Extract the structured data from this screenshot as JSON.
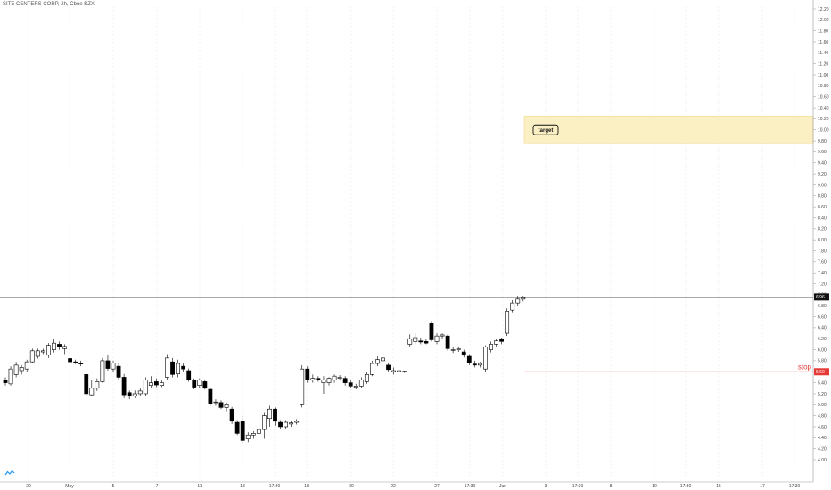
{
  "header": {
    "title": "SITE CENTERS CORP, 2h, Cboe BZX"
  },
  "chart_data": {
    "type": "candlestick",
    "title": "SITE CENTERS CORP, 2h, Cboe BZX",
    "ylim": [
      4.0,
      12.3
    ],
    "y_ticks": [
      "12.20",
      "12.00",
      "11.80",
      "11.60",
      "11.40",
      "11.20",
      "11.00",
      "10.80",
      "10.60",
      "10.40",
      "10.20",
      "10.00",
      "9.80",
      "9.60",
      "9.40",
      "9.20",
      "9.00",
      "8.80",
      "8.60",
      "8.40",
      "8.20",
      "8.00",
      "7.80",
      "7.60",
      "7.40",
      "7.20",
      "7.00",
      "6.80",
      "6.60",
      "6.40",
      "6.20",
      "6.00",
      "5.80",
      "5.60",
      "5.40",
      "5.20",
      "5.00",
      "4.80",
      "4.60",
      "4.40",
      "4.20",
      "4.00"
    ],
    "x_ticks": [
      "29",
      "May",
      "5",
      "7",
      "11",
      "13",
      "17:30",
      "18",
      "20",
      "22",
      "27",
      "17:30",
      "Jun",
      "3",
      "17:30",
      "8",
      "10",
      "17:30",
      "15",
      "17",
      "17:30"
    ],
    "candles": [
      {
        "o": 5.45,
        "h": 5.5,
        "l": 5.35,
        "c": 5.4
      },
      {
        "o": 5.38,
        "h": 5.7,
        "l": 5.35,
        "c": 5.65
      },
      {
        "o": 5.55,
        "h": 5.78,
        "l": 5.5,
        "c": 5.72
      },
      {
        "o": 5.62,
        "h": 5.72,
        "l": 5.55,
        "c": 5.68
      },
      {
        "o": 5.65,
        "h": 5.82,
        "l": 5.6,
        "c": 5.78
      },
      {
        "o": 5.78,
        "h": 6.02,
        "l": 5.75,
        "c": 5.98
      },
      {
        "o": 5.88,
        "h": 6.02,
        "l": 5.84,
        "c": 5.98
      },
      {
        "o": 5.96,
        "h": 6.02,
        "l": 5.92,
        "c": 5.98
      },
      {
        "o": 5.9,
        "h": 6.12,
        "l": 5.85,
        "c": 6.08
      },
      {
        "o": 6.0,
        "h": 6.2,
        "l": 5.95,
        "c": 6.12
      },
      {
        "o": 6.1,
        "h": 6.15,
        "l": 6.0,
        "c": 6.05
      },
      {
        "o": 6.02,
        "h": 6.1,
        "l": 5.92,
        "c": 6.06
      },
      {
        "o": 5.84,
        "h": 5.86,
        "l": 5.72,
        "c": 5.78
      },
      {
        "o": 5.78,
        "h": 5.82,
        "l": 5.74,
        "c": 5.77
      },
      {
        "o": 5.76,
        "h": 5.8,
        "l": 5.7,
        "c": 5.74
      },
      {
        "o": 5.55,
        "h": 5.58,
        "l": 5.15,
        "c": 5.2
      },
      {
        "o": 5.18,
        "h": 5.45,
        "l": 5.15,
        "c": 5.3
      },
      {
        "o": 5.3,
        "h": 5.48,
        "l": 5.25,
        "c": 5.42
      },
      {
        "o": 5.42,
        "h": 5.85,
        "l": 5.4,
        "c": 5.8
      },
      {
        "o": 5.8,
        "h": 5.9,
        "l": 5.62,
        "c": 5.66
      },
      {
        "o": 5.65,
        "h": 5.8,
        "l": 5.6,
        "c": 5.76
      },
      {
        "o": 5.7,
        "h": 5.75,
        "l": 5.45,
        "c": 5.5
      },
      {
        "o": 5.5,
        "h": 5.56,
        "l": 5.12,
        "c": 5.18
      },
      {
        "o": 5.22,
        "h": 5.26,
        "l": 5.1,
        "c": 5.16
      },
      {
        "o": 5.16,
        "h": 5.26,
        "l": 5.12,
        "c": 5.2
      },
      {
        "o": 5.2,
        "h": 5.3,
        "l": 5.15,
        "c": 5.25
      },
      {
        "o": 5.2,
        "h": 5.5,
        "l": 5.15,
        "c": 5.45
      },
      {
        "o": 5.35,
        "h": 5.52,
        "l": 5.3,
        "c": 5.4
      },
      {
        "o": 5.42,
        "h": 5.48,
        "l": 5.32,
        "c": 5.36
      },
      {
        "o": 5.35,
        "h": 5.45,
        "l": 5.32,
        "c": 5.4
      },
      {
        "o": 5.5,
        "h": 5.92,
        "l": 5.45,
        "c": 5.85
      },
      {
        "o": 5.78,
        "h": 5.85,
        "l": 5.5,
        "c": 5.55
      },
      {
        "o": 5.56,
        "h": 5.82,
        "l": 5.5,
        "c": 5.75
      },
      {
        "o": 5.7,
        "h": 5.75,
        "l": 5.6,
        "c": 5.65
      },
      {
        "o": 5.62,
        "h": 5.66,
        "l": 5.42,
        "c": 5.45
      },
      {
        "o": 5.44,
        "h": 5.48,
        "l": 5.28,
        "c": 5.32
      },
      {
        "o": 5.35,
        "h": 5.48,
        "l": 5.3,
        "c": 5.45
      },
      {
        "o": 5.42,
        "h": 5.46,
        "l": 5.28,
        "c": 5.3
      },
      {
        "o": 5.28,
        "h": 5.3,
        "l": 4.98,
        "c": 5.02
      },
      {
        "o": 5.05,
        "h": 5.1,
        "l": 4.98,
        "c": 5.05
      },
      {
        "o": 5.04,
        "h": 5.08,
        "l": 4.92,
        "c": 4.95
      },
      {
        "o": 4.95,
        "h": 5.04,
        "l": 4.88,
        "c": 5.0
      },
      {
        "o": 4.92,
        "h": 4.96,
        "l": 4.65,
        "c": 4.7
      },
      {
        "o": 4.68,
        "h": 4.72,
        "l": 4.45,
        "c": 4.48
      },
      {
        "o": 4.7,
        "h": 4.8,
        "l": 4.3,
        "c": 4.35
      },
      {
        "o": 4.38,
        "h": 4.5,
        "l": 4.32,
        "c": 4.45
      },
      {
        "o": 4.45,
        "h": 4.52,
        "l": 4.38,
        "c": 4.48
      },
      {
        "o": 4.48,
        "h": 4.6,
        "l": 4.42,
        "c": 4.55
      },
      {
        "o": 4.55,
        "h": 4.85,
        "l": 4.38,
        "c": 4.8
      },
      {
        "o": 4.75,
        "h": 4.98,
        "l": 4.6,
        "c": 4.92
      },
      {
        "o": 4.92,
        "h": 4.95,
        "l": 4.62,
        "c": 4.7
      },
      {
        "o": 4.68,
        "h": 4.72,
        "l": 4.55,
        "c": 4.6
      },
      {
        "o": 4.6,
        "h": 4.72,
        "l": 4.55,
        "c": 4.68
      },
      {
        "o": 4.65,
        "h": 4.7,
        "l": 4.6,
        "c": 4.67
      },
      {
        "o": 4.68,
        "h": 4.74,
        "l": 4.64,
        "c": 4.7
      },
      {
        "o": 5.0,
        "h": 5.72,
        "l": 4.95,
        "c": 5.65
      },
      {
        "o": 5.65,
        "h": 5.7,
        "l": 5.4,
        "c": 5.45
      },
      {
        "o": 5.45,
        "h": 5.55,
        "l": 5.4,
        "c": 5.48
      },
      {
        "o": 5.48,
        "h": 5.52,
        "l": 5.42,
        "c": 5.45
      },
      {
        "o": 5.4,
        "h": 5.52,
        "l": 5.2,
        "c": 5.45
      },
      {
        "o": 5.4,
        "h": 5.5,
        "l": 5.35,
        "c": 5.48
      },
      {
        "o": 5.45,
        "h": 5.55,
        "l": 5.4,
        "c": 5.52
      },
      {
        "o": 5.48,
        "h": 5.54,
        "l": 5.44,
        "c": 5.5
      },
      {
        "o": 5.48,
        "h": 5.52,
        "l": 5.35,
        "c": 5.4
      },
      {
        "o": 5.4,
        "h": 5.46,
        "l": 5.3,
        "c": 5.34
      },
      {
        "o": 5.32,
        "h": 5.38,
        "l": 5.28,
        "c": 5.34
      },
      {
        "o": 5.34,
        "h": 5.5,
        "l": 5.3,
        "c": 5.45
      },
      {
        "o": 5.42,
        "h": 5.6,
        "l": 5.38,
        "c": 5.55
      },
      {
        "o": 5.55,
        "h": 5.8,
        "l": 5.52,
        "c": 5.75
      },
      {
        "o": 5.75,
        "h": 5.88,
        "l": 5.7,
        "c": 5.82
      },
      {
        "o": 5.8,
        "h": 5.9,
        "l": 5.75,
        "c": 5.85
      },
      {
        "o": 5.72,
        "h": 5.76,
        "l": 5.6,
        "c": 5.64
      },
      {
        "o": 5.6,
        "h": 5.68,
        "l": 5.55,
        "c": 5.62
      },
      {
        "o": 5.6,
        "h": 5.64,
        "l": 5.56,
        "c": 5.62
      },
      {
        "o": 5.6,
        "h": 5.62,
        "l": 5.58,
        "c": 5.61
      },
      {
        "o": 6.1,
        "h": 6.28,
        "l": 6.05,
        "c": 6.2
      },
      {
        "o": 6.15,
        "h": 6.3,
        "l": 6.1,
        "c": 6.22
      },
      {
        "o": 6.16,
        "h": 6.22,
        "l": 6.1,
        "c": 6.14
      },
      {
        "o": 6.15,
        "h": 6.2,
        "l": 6.1,
        "c": 6.12
      },
      {
        "o": 6.48,
        "h": 6.52,
        "l": 6.15,
        "c": 6.18
      },
      {
        "o": 6.15,
        "h": 6.3,
        "l": 6.1,
        "c": 6.25
      },
      {
        "o": 6.25,
        "h": 6.3,
        "l": 6.2,
        "c": 6.27
      },
      {
        "o": 6.25,
        "h": 6.28,
        "l": 5.98,
        "c": 6.02
      },
      {
        "o": 6.0,
        "h": 6.05,
        "l": 5.94,
        "c": 6.0
      },
      {
        "o": 6.0,
        "h": 6.06,
        "l": 5.96,
        "c": 6.02
      },
      {
        "o": 5.96,
        "h": 6.0,
        "l": 5.86,
        "c": 5.9
      },
      {
        "o": 5.88,
        "h": 5.92,
        "l": 5.72,
        "c": 5.76
      },
      {
        "o": 5.74,
        "h": 5.8,
        "l": 5.68,
        "c": 5.72
      },
      {
        "o": 5.72,
        "h": 5.78,
        "l": 5.68,
        "c": 5.75
      },
      {
        "o": 5.65,
        "h": 6.08,
        "l": 5.6,
        "c": 6.05
      },
      {
        "o": 6.0,
        "h": 6.15,
        "l": 5.95,
        "c": 6.1
      },
      {
        "o": 6.1,
        "h": 6.2,
        "l": 6.06,
        "c": 6.16
      },
      {
        "o": 6.2,
        "h": 6.22,
        "l": 6.1,
        "c": 6.15
      },
      {
        "o": 6.3,
        "h": 6.75,
        "l": 6.25,
        "c": 6.7
      },
      {
        "o": 6.72,
        "h": 6.9,
        "l": 6.68,
        "c": 6.85
      },
      {
        "o": 6.85,
        "h": 6.98,
        "l": 6.8,
        "c": 6.92
      },
      {
        "o": 6.92,
        "h": 6.98,
        "l": 6.88,
        "c": 6.96
      }
    ],
    "last_price": {
      "value": 6.96,
      "label": "6.96"
    },
    "stop": {
      "value": 5.6,
      "label": "stop",
      "tag": "5.60",
      "color": "#e53935"
    },
    "target": {
      "low": 9.75,
      "high": 10.25,
      "label": "target",
      "fill": "#fbefc4",
      "border": "#f2d88a"
    },
    "colors": {
      "up_fill": "#ffffff",
      "down_fill": "#000000",
      "outline": "#000000",
      "grid": "#dcdcdc"
    }
  }
}
